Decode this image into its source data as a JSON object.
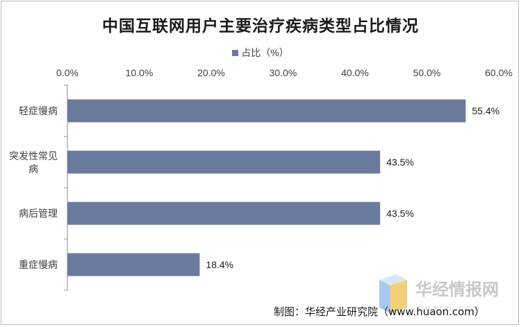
{
  "chart_data": {
    "type": "bar",
    "orientation": "horizontal",
    "title": "中国互联网用户主要治疗疾病类型占比情况",
    "categories": [
      "轻症慢病",
      "突发性常见病",
      "病后管理",
      "重症慢病"
    ],
    "series": [
      {
        "name": "占比（%）",
        "values": [
          55.4,
          43.5,
          43.5,
          18.4
        ],
        "color": "#6b7b9e"
      }
    ],
    "data_labels": [
      "55.4%",
      "43.5%",
      "43.5%",
      "18.4%"
    ],
    "xlim": [
      0,
      60
    ],
    "x_ticks": [
      "0.0%",
      "10.0%",
      "20.0%",
      "30.0%",
      "40.0%",
      "50.0%",
      "60.0%"
    ],
    "x_axis_position": "top",
    "grid": false,
    "legend_position": "top-center"
  },
  "watermark": {
    "brand": "华经情报网",
    "url": "huaon.com"
  },
  "source_text": "制图：华经产业研究院（www.huaon.com）"
}
